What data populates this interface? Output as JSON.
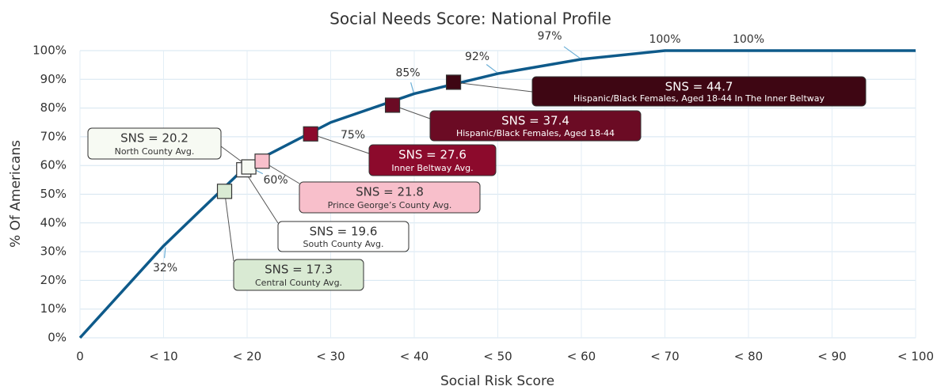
{
  "chart_data": {
    "type": "line",
    "title": "Social Needs Score: National Profile",
    "xlabel": "Social Risk Score",
    "ylabel": "% Of Americans",
    "x": [
      0,
      10,
      20,
      30,
      40,
      50,
      60,
      70,
      80,
      90,
      100
    ],
    "series": [
      {
        "name": "% Of Americans",
        "color": "#0e5a8a",
        "values": [
          0,
          32,
          60,
          75,
          85,
          92,
          97,
          100,
          100,
          100,
          100
        ],
        "value_labels": [
          null,
          "32%",
          "60%",
          "75%",
          "85%",
          "92%",
          "97%",
          "100%",
          "100%",
          null,
          null
        ]
      }
    ],
    "markers": [
      {
        "x": 17.3,
        "y": 51,
        "color": "#d9ead3",
        "label": "SNS = 17.3",
        "sublabel": "Central County Avg."
      },
      {
        "x": 19.6,
        "y": 58.5,
        "color": "#ffffff",
        "label": "SNS = 19.6",
        "sublabel": "South County Avg."
      },
      {
        "x": 20.2,
        "y": 59.5,
        "color": "#f7faf3",
        "label": "SNS = 20.2",
        "sublabel": "North County Avg."
      },
      {
        "x": 21.8,
        "y": 61.5,
        "color": "#f8bfcb",
        "label": "SNS = 21.8",
        "sublabel": "Prince George’s County Avg."
      },
      {
        "x": 27.6,
        "y": 71,
        "color": "#8c0a2c",
        "label": "SNS = 27.6",
        "sublabel": "Inner Beltway Avg."
      },
      {
        "x": 37.4,
        "y": 81,
        "color": "#6b0b24",
        "label": "SNS = 37.4",
        "sublabel": "Hispanic/Black Females, Aged 18-44"
      },
      {
        "x": 44.7,
        "y": 89,
        "color": "#3e0613",
        "label": "SNS = 44.7",
        "sublabel": "Hispanic/Black Females, Aged 18-44 In The Inner Beltway"
      }
    ],
    "xlim": [
      0,
      100
    ],
    "xticks": [
      0,
      {
        "value": 10,
        "label": "< 10"
      },
      {
        "value": 20,
        "label": "< 20"
      },
      {
        "value": 30,
        "label": "< 30"
      },
      {
        "value": 40,
        "label": "< 40"
      },
      {
        "value": 50,
        "label": "< 50"
      },
      {
        "value": 60,
        "label": "< 60"
      },
      {
        "value": 70,
        "label": "< 70"
      },
      {
        "value": 80,
        "label": "< 80"
      },
      {
        "value": 90,
        "label": "< 90"
      },
      {
        "value": 100,
        "label": "< 100"
      }
    ],
    "ylim": [
      0,
      100
    ],
    "yticks": [
      {
        "value": 0,
        "label": "0%"
      },
      {
        "value": 10,
        "label": "10%"
      },
      {
        "value": 20,
        "label": "20%"
      },
      {
        "value": 30,
        "label": "30%"
      },
      {
        "value": 40,
        "label": "40%"
      },
      {
        "value": 50,
        "label": "50%"
      },
      {
        "value": 60,
        "label": "60%"
      },
      {
        "value": 70,
        "label": "70%"
      },
      {
        "value": 80,
        "label": "80%"
      },
      {
        "value": 90,
        "label": "90%"
      },
      {
        "value": 100,
        "label": "100%"
      }
    ],
    "grid": true
  }
}
